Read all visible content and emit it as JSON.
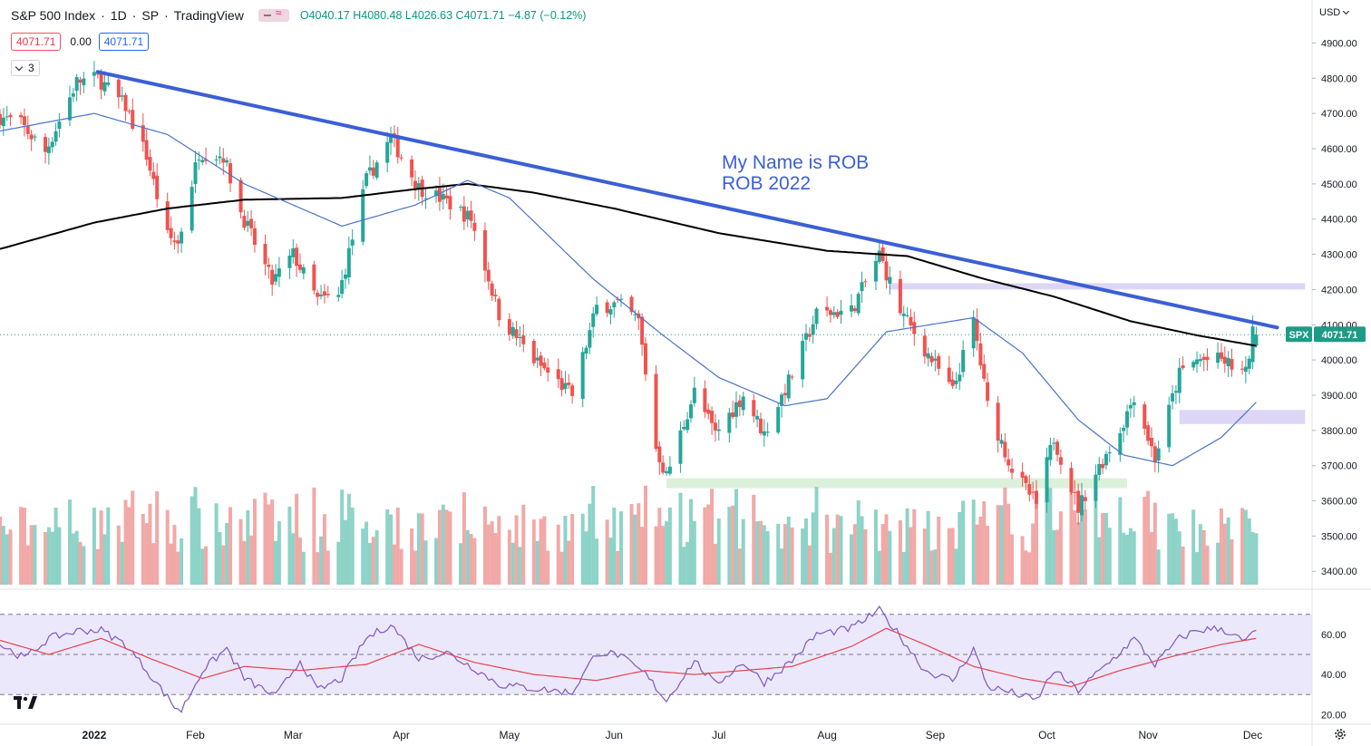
{
  "header": {
    "symbol": "S&P 500 Index",
    "interval": "1D",
    "exchange": "SP",
    "source": "TradingView",
    "open_label": "O",
    "open": "4040.17",
    "high_label": "H",
    "high": "4080.48",
    "low_label": "L",
    "low": "4026.63",
    "close_label": "C",
    "close": "4071.71",
    "change": "−4.87 (−0.12%)",
    "indicator_values": [
      "4071.71",
      "0.00",
      "4071.71"
    ],
    "collapsed_count": "3"
  },
  "currency": "USD",
  "colors": {
    "up": "#26a69a",
    "down": "#ef5350",
    "up_volume": "#8ed3c7",
    "down_volume": "#f1a9a7",
    "trendline": "#3b5fd6",
    "ma200": "#000000",
    "ma50": "#4a72c9",
    "rsi": "#7e57c2",
    "rsi_ma": "#e5434f",
    "resistance_zone": "#d9d1f5",
    "support_zone": "#d7f0d6",
    "rsi_band": "#ece8fb",
    "price_tag": "#1e9b86"
  },
  "icons": [
    "tradingview-logo-icon",
    "settings-gear-icon",
    "chevron-down-icon",
    "indicator-toggle-icon"
  ],
  "annotation": {
    "line1": "My Name is ROB",
    "line2": "ROB 2022"
  },
  "chart_data": {
    "type": "candlestick",
    "y_ticks": [
      "4900.00",
      "4800.00",
      "4700.00",
      "4600.00",
      "4500.00",
      "4400.00",
      "4300.00",
      "4200.00",
      "4100.00",
      "4000.00",
      "3900.00",
      "3800.00",
      "3700.00",
      "3600.00",
      "3500.00",
      "3400.00"
    ],
    "y_range": [
      3362,
      4950
    ],
    "x_tick_labels": [
      "2022",
      "Feb",
      "Mar",
      "Apr",
      "May",
      "Jun",
      "Jul",
      "Aug",
      "Sep",
      "Oct",
      "Nov",
      "Dec"
    ],
    "x_tick_dates": [
      "2022-01-03",
      "2022-02-01",
      "2022-03-01",
      "2022-04-01",
      "2022-05-02",
      "2022-06-01",
      "2022-07-01",
      "2022-08-01",
      "2022-09-01",
      "2022-10-03",
      "2022-11-01",
      "2022-12-01"
    ],
    "date_range": [
      "2021-12-07",
      "2022-12-18"
    ],
    "price_label": {
      "symbol": "SPX",
      "value": "4071.71",
      "price": 4071.71
    },
    "rsi_ticks": [
      "60.00",
      "40.00",
      "20.00"
    ],
    "rsi_range": [
      17,
      78
    ],
    "rsi_bands": [
      30,
      50,
      70
    ],
    "trendline": {
      "from": {
        "date": "2022-01-04",
        "price": 4818
      },
      "to": {
        "date": "2022-12-08",
        "price": 4092
      }
    },
    "zones": [
      {
        "kind": "resistance",
        "from_date": "2022-08-19",
        "to_date": "2022-12-16",
        "low": 4200,
        "high": 4218
      },
      {
        "kind": "resistance",
        "from_date": "2022-11-10",
        "to_date": "2022-12-16",
        "low": 3818,
        "high": 3858
      },
      {
        "kind": "support",
        "from_date": "2022-06-16",
        "to_date": "2022-10-26",
        "low": 3636,
        "high": 3664
      }
    ],
    "price_path": [
      [
        "2021-12-07",
        4690
      ],
      [
        "2021-12-13",
        4670
      ],
      [
        "2021-12-20",
        4590
      ],
      [
        "2021-12-29",
        4790
      ],
      [
        "2022-01-04",
        4800
      ],
      [
        "2022-01-12",
        4720
      ],
      [
        "2022-01-18",
        4580
      ],
      [
        "2022-01-24",
        4350
      ],
      [
        "2022-01-27",
        4330
      ],
      [
        "2022-02-02",
        4590
      ],
      [
        "2022-02-09",
        4580
      ],
      [
        "2022-02-14",
        4420
      ],
      [
        "2022-02-23",
        4220
      ],
      [
        "2022-03-01",
        4300
      ],
      [
        "2022-03-08",
        4170
      ],
      [
        "2022-03-14",
        4180
      ],
      [
        "2022-03-22",
        4510
      ],
      [
        "2022-03-29",
        4630
      ],
      [
        "2022-04-06",
        4490
      ],
      [
        "2022-04-14",
        4450
      ],
      [
        "2022-04-21",
        4400
      ],
      [
        "2022-04-29",
        4130
      ],
      [
        "2022-05-09",
        4000
      ],
      [
        "2022-05-20",
        3900
      ],
      [
        "2022-05-27",
        4150
      ],
      [
        "2022-06-02",
        4160
      ],
      [
        "2022-06-08",
        4110
      ],
      [
        "2022-06-13",
        3750
      ],
      [
        "2022-06-16",
        3670
      ],
      [
        "2022-06-24",
        3910
      ],
      [
        "2022-06-30",
        3790
      ],
      [
        "2022-07-08",
        3900
      ],
      [
        "2022-07-14",
        3790
      ],
      [
        "2022-07-22",
        3960
      ],
      [
        "2022-07-29",
        4130
      ],
      [
        "2022-08-08",
        4140
      ],
      [
        "2022-08-16",
        4300
      ],
      [
        "2022-08-22",
        4140
      ],
      [
        "2022-08-29",
        4030
      ],
      [
        "2022-09-06",
        3910
      ],
      [
        "2022-09-12",
        4110
      ],
      [
        "2022-09-16",
        3870
      ],
      [
        "2022-09-23",
        3690
      ],
      [
        "2022-09-30",
        3590
      ],
      [
        "2022-10-05",
        3780
      ],
      [
        "2022-10-12",
        3580
      ],
      [
        "2022-10-17",
        3680
      ],
      [
        "2022-10-24",
        3800
      ],
      [
        "2022-10-28",
        3900
      ],
      [
        "2022-11-03",
        3720
      ],
      [
        "2022-11-10",
        3960
      ],
      [
        "2022-11-15",
        4000
      ],
      [
        "2022-11-22",
        4000
      ],
      [
        "2022-11-29",
        3960
      ],
      [
        "2022-12-01",
        4076
      ],
      [
        "2022-12-02",
        4071.71
      ]
    ],
    "ma50_path": [
      [
        "2021-12-07",
        4650
      ],
      [
        "2022-01-03",
        4700
      ],
      [
        "2022-01-24",
        4640
      ],
      [
        "2022-02-15",
        4500
      ],
      [
        "2022-03-15",
        4380
      ],
      [
        "2022-04-05",
        4440
      ],
      [
        "2022-04-20",
        4510
      ],
      [
        "2022-05-02",
        4460
      ],
      [
        "2022-05-26",
        4230
      ],
      [
        "2022-06-15",
        4070
      ],
      [
        "2022-07-01",
        3950
      ],
      [
        "2022-07-20",
        3870
      ],
      [
        "2022-08-01",
        3890
      ],
      [
        "2022-08-18",
        4080
      ],
      [
        "2022-09-12",
        4120
      ],
      [
        "2022-09-26",
        4020
      ],
      [
        "2022-10-12",
        3830
      ],
      [
        "2022-10-25",
        3730
      ],
      [
        "2022-11-08",
        3700
      ],
      [
        "2022-11-22",
        3780
      ],
      [
        "2022-12-02",
        3880
      ]
    ],
    "ma200_path": [
      [
        "2021-12-07",
        4315
      ],
      [
        "2022-01-03",
        4390
      ],
      [
        "2022-01-24",
        4430
      ],
      [
        "2022-02-15",
        4455
      ],
      [
        "2022-03-15",
        4460
      ],
      [
        "2022-04-05",
        4485
      ],
      [
        "2022-04-20",
        4500
      ],
      [
        "2022-05-09",
        4475
      ],
      [
        "2022-06-01",
        4430
      ],
      [
        "2022-07-01",
        4360
      ],
      [
        "2022-08-01",
        4310
      ],
      [
        "2022-08-24",
        4295
      ],
      [
        "2022-09-15",
        4230
      ],
      [
        "2022-10-05",
        4180
      ],
      [
        "2022-10-27",
        4110
      ],
      [
        "2022-11-15",
        4070
      ],
      [
        "2022-12-02",
        4040
      ]
    ],
    "rsi_path": [
      [
        "2021-12-07",
        55
      ],
      [
        "2021-12-14",
        48
      ],
      [
        "2021-12-21",
        58
      ],
      [
        "2021-12-30",
        62
      ],
      [
        "2022-01-05",
        62
      ],
      [
        "2022-01-12",
        55
      ],
      [
        "2022-01-19",
        40
      ],
      [
        "2022-01-26",
        24
      ],
      [
        "2022-01-28",
        22
      ],
      [
        "2022-02-03",
        42
      ],
      [
        "2022-02-10",
        53
      ],
      [
        "2022-02-15",
        38
      ],
      [
        "2022-02-24",
        29
      ],
      [
        "2022-03-03",
        47
      ],
      [
        "2022-03-08",
        32
      ],
      [
        "2022-03-15",
        38
      ],
      [
        "2022-03-22",
        58
      ],
      [
        "2022-03-29",
        65
      ],
      [
        "2022-04-06",
        48
      ],
      [
        "2022-04-14",
        51
      ],
      [
        "2022-04-22",
        43
      ],
      [
        "2022-04-29",
        35
      ],
      [
        "2022-05-09",
        33
      ],
      [
        "2022-05-20",
        31
      ],
      [
        "2022-05-27",
        51
      ],
      [
        "2022-06-02",
        50
      ],
      [
        "2022-06-10",
        40
      ],
      [
        "2022-06-16",
        27
      ],
      [
        "2022-06-24",
        47
      ],
      [
        "2022-06-30",
        35
      ],
      [
        "2022-07-08",
        46
      ],
      [
        "2022-07-14",
        36
      ],
      [
        "2022-07-22",
        47
      ],
      [
        "2022-07-29",
        60
      ],
      [
        "2022-08-08",
        63
      ],
      [
        "2022-08-16",
        72
      ],
      [
        "2022-08-22",
        59
      ],
      [
        "2022-08-29",
        42
      ],
      [
        "2022-09-06",
        37
      ],
      [
        "2022-09-12",
        53
      ],
      [
        "2022-09-16",
        34
      ],
      [
        "2022-09-23",
        31
      ],
      [
        "2022-09-30",
        27
      ],
      [
        "2022-10-05",
        42
      ],
      [
        "2022-10-12",
        32
      ],
      [
        "2022-10-17",
        40
      ],
      [
        "2022-10-24",
        51
      ],
      [
        "2022-10-28",
        58
      ],
      [
        "2022-11-03",
        45
      ],
      [
        "2022-11-10",
        58
      ],
      [
        "2022-11-15",
        62
      ],
      [
        "2022-11-22",
        63
      ],
      [
        "2022-11-29",
        56
      ],
      [
        "2022-12-01",
        62
      ],
      [
        "2022-12-02",
        61
      ]
    ],
    "rsi_ma_path": [
      [
        "2021-12-07",
        57
      ],
      [
        "2021-12-21",
        50
      ],
      [
        "2022-01-05",
        58
      ],
      [
        "2022-01-19",
        48
      ],
      [
        "2022-02-03",
        38
      ],
      [
        "2022-02-15",
        44
      ],
      [
        "2022-03-03",
        42
      ],
      [
        "2022-03-22",
        45
      ],
      [
        "2022-04-06",
        55
      ],
      [
        "2022-04-22",
        46
      ],
      [
        "2022-05-09",
        40
      ],
      [
        "2022-05-27",
        37
      ],
      [
        "2022-06-10",
        42
      ],
      [
        "2022-06-24",
        40
      ],
      [
        "2022-07-08",
        42
      ],
      [
        "2022-07-22",
        44
      ],
      [
        "2022-08-08",
        54
      ],
      [
        "2022-08-18",
        63
      ],
      [
        "2022-08-29",
        55
      ],
      [
        "2022-09-12",
        44
      ],
      [
        "2022-09-26",
        38
      ],
      [
        "2022-10-10",
        34
      ],
      [
        "2022-10-24",
        42
      ],
      [
        "2022-11-08",
        49
      ],
      [
        "2022-11-22",
        55
      ],
      [
        "2022-12-02",
        58
      ]
    ]
  }
}
